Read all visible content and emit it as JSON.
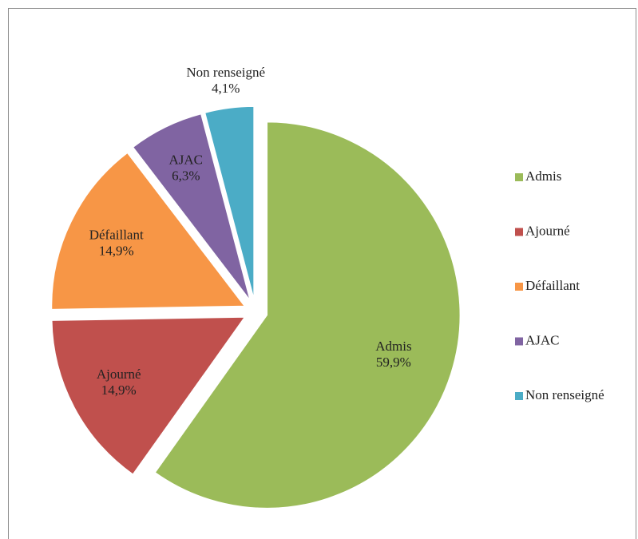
{
  "chart_data": {
    "type": "pie",
    "categories": [
      "Admis",
      "Ajourné",
      "Défaillant",
      "AJAC",
      "Non renseigné"
    ],
    "values": [
      59.9,
      14.9,
      14.9,
      6.3,
      4.1
    ],
    "value_labels": [
      "59,9%",
      "14,9%",
      "14,9%",
      "6,3%",
      "4,1%"
    ],
    "colors": [
      "#9bbb59",
      "#c0504d",
      "#f79646",
      "#8064a2",
      "#4bacc6"
    ],
    "legend": "right"
  }
}
